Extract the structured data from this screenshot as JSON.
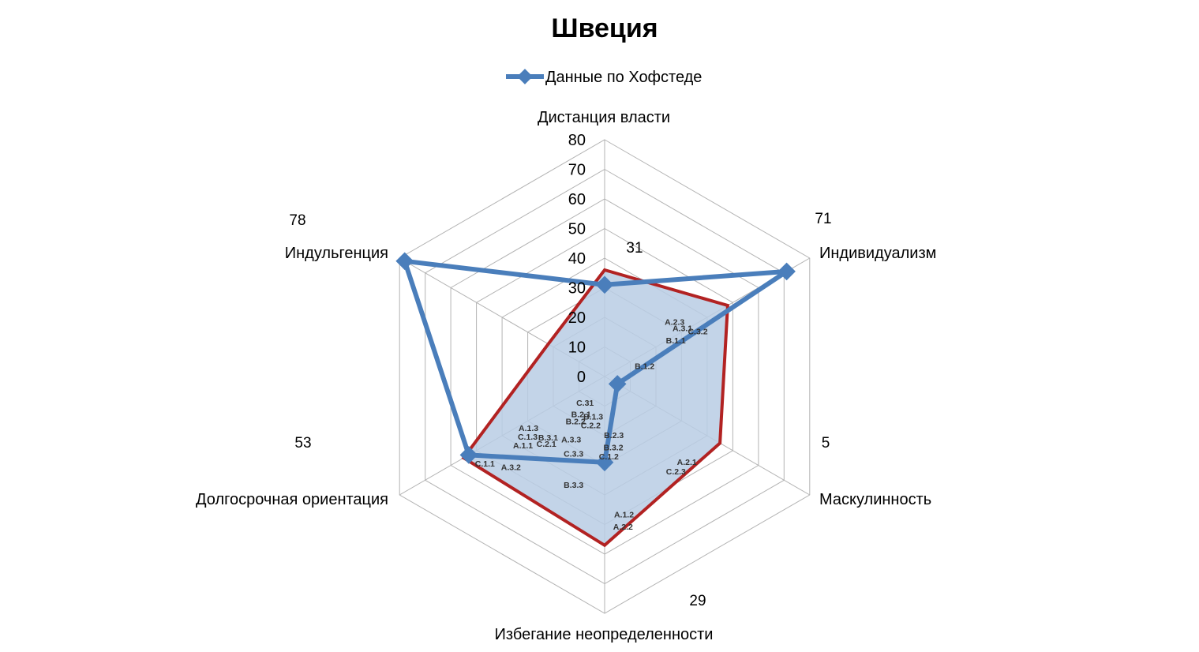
{
  "chart_data": {
    "type": "radar",
    "title": "Швеция",
    "axes": [
      "Дистанция власти",
      "Индивидуализм",
      "Маскулинность",
      "Избегание неопределенности",
      "Долгосрочная ориентация",
      "Индульгенция"
    ],
    "rlim": [
      0,
      80
    ],
    "ticks": [
      "0",
      "10",
      "20",
      "30",
      "40",
      "50",
      "60",
      "70",
      "80"
    ],
    "grid": true,
    "legend": "top",
    "series": [
      {
        "name": "Данные по Хофстеде",
        "values": [
          31,
          71,
          5,
          29,
          53,
          78
        ],
        "color": "#4a7ebb",
        "marker": "diamond"
      }
    ],
    "overlay": {
      "values": [
        36,
        48,
        45,
        57,
        55,
        22
      ],
      "stroke": "#b22222",
      "fill": "#b8cce4"
    },
    "value_labels": [
      "31",
      "71",
      "5",
      "29",
      "53",
      "78"
    ],
    "code_labels": [
      {
        "text": "A.2.3",
        "r": 30,
        "deg": 52
      },
      {
        "text": "A.3.1",
        "r": 31,
        "deg": 58
      },
      {
        "text": "B.1.1",
        "r": 27,
        "deg": 63
      },
      {
        "text": "C.3.2",
        "r": 35,
        "deg": 64
      },
      {
        "text": "B.1.2",
        "r": 14,
        "deg": 75
      },
      {
        "text": "C.31",
        "r": 11,
        "deg": 217
      },
      {
        "text": "B.2.1",
        "r": 15,
        "deg": 212
      },
      {
        "text": "B.1.3",
        "r": 14,
        "deg": 196
      },
      {
        "text": "B.2.2",
        "r": 18,
        "deg": 213
      },
      {
        "text": "C.2.2",
        "r": 17,
        "deg": 196
      },
      {
        "text": "A.1.3",
        "r": 31,
        "deg": 236
      },
      {
        "text": "B.2.3",
        "r": 20,
        "deg": 171
      },
      {
        "text": "C.1.3",
        "r": 33,
        "deg": 232
      },
      {
        "text": "B.3.1",
        "r": 28,
        "deg": 223
      },
      {
        "text": "A.3.3",
        "r": 24,
        "deg": 208
      },
      {
        "text": "B.3.2",
        "r": 24,
        "deg": 173
      },
      {
        "text": "A.1.1",
        "r": 36,
        "deg": 230
      },
      {
        "text": "C.2.1",
        "r": 30,
        "deg": 221
      },
      {
        "text": "C.3.3",
        "r": 28,
        "deg": 202
      },
      {
        "text": "C.1.2",
        "r": 27,
        "deg": 177
      },
      {
        "text": "A.2.1",
        "r": 40,
        "deg": 136
      },
      {
        "text": "C.1.1",
        "r": 50,
        "deg": 234
      },
      {
        "text": "A.3.2",
        "r": 44,
        "deg": 226
      },
      {
        "text": "C.2.3",
        "r": 40,
        "deg": 143
      },
      {
        "text": "B.3.3",
        "r": 38,
        "deg": 196
      },
      {
        "text": "A.1.2",
        "r": 47,
        "deg": 172
      },
      {
        "text": "A.2.2",
        "r": 51,
        "deg": 173
      }
    ]
  }
}
